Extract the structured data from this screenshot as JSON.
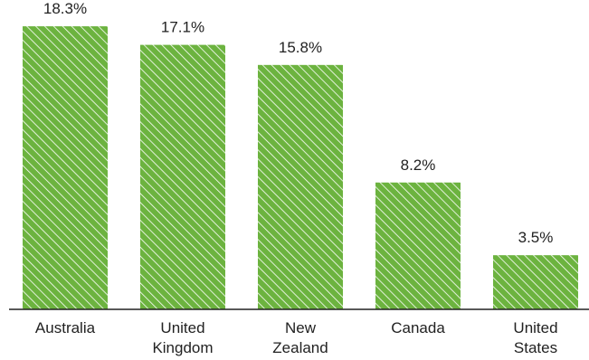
{
  "chart_data": {
    "type": "bar",
    "categories": [
      [
        "Australia"
      ],
      [
        "United",
        "Kingdom"
      ],
      [
        "New",
        "Zealand"
      ],
      [
        "Canada"
      ],
      [
        "United",
        "States"
      ]
    ],
    "values": [
      18.3,
      17.1,
      15.8,
      8.2,
      3.5
    ],
    "value_labels": [
      "18.3%",
      "17.1%",
      "15.8%",
      "8.2%",
      "3.5%"
    ],
    "title": "",
    "xlabel": "",
    "ylabel": "",
    "ylim": [
      0,
      20
    ],
    "grid": false,
    "legend": "none",
    "colors": {
      "bar_fill": "#6cb33f",
      "hatch": "#ffffff",
      "axis": "#222222",
      "text": "#222222"
    }
  }
}
